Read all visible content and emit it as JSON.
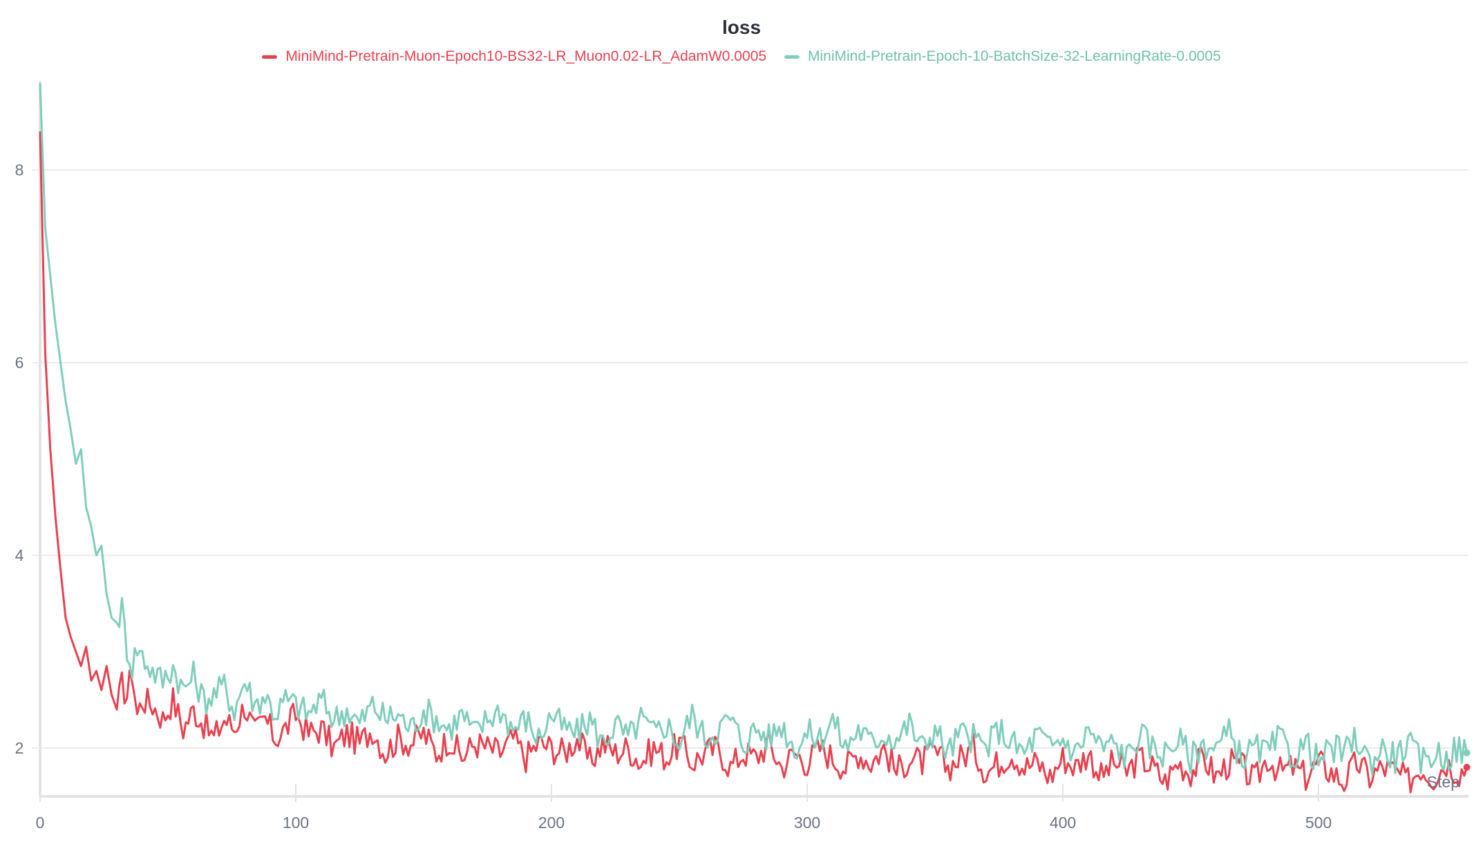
{
  "chart_data": {
    "type": "line",
    "title": "loss",
    "xlabel": "Step",
    "ylabel": "",
    "xlim": [
      0,
      558
    ],
    "ylim": [
      1.5,
      8.9
    ],
    "x_ticks": [
      0,
      100,
      200,
      300,
      400,
      500
    ],
    "y_ticks": [
      2,
      4,
      6,
      8
    ],
    "grid": true,
    "legend_position": "top-center",
    "series": [
      {
        "name": "MiniMind-Pretrain-Muon-Epoch10-BS32-LR_Muon0.02-LR_AdamW0.0005",
        "color": "#e8404f",
        "x": [
          0,
          2,
          4,
          6,
          8,
          10,
          12,
          14,
          16,
          18,
          20,
          22,
          24,
          26,
          28,
          30,
          32,
          34,
          36,
          38,
          40,
          44,
          48,
          52,
          56,
          60,
          64,
          68,
          72,
          76,
          80,
          84,
          88,
          92,
          96,
          100,
          105,
          110,
          115,
          120,
          125,
          130,
          135,
          140,
          145,
          150,
          155,
          160,
          165,
          170,
          175,
          180,
          185,
          190,
          195,
          200,
          205,
          210,
          215,
          220,
          225,
          230,
          235,
          240,
          245,
          250,
          255,
          260,
          265,
          270,
          275,
          280,
          285,
          290,
          295,
          300,
          305,
          310,
          315,
          320,
          325,
          330,
          335,
          340,
          345,
          350,
          355,
          360,
          365,
          370,
          375,
          380,
          385,
          390,
          395,
          400,
          405,
          410,
          415,
          420,
          425,
          430,
          435,
          440,
          445,
          450,
          455,
          460,
          465,
          470,
          475,
          480,
          485,
          490,
          495,
          500,
          505,
          510,
          515,
          520,
          525,
          530,
          535,
          540,
          545,
          550,
          555,
          558
        ],
        "values": [
          8.4,
          6.1,
          5.1,
          4.4,
          3.85,
          3.35,
          3.15,
          3.0,
          2.85,
          3.05,
          2.7,
          2.8,
          2.6,
          2.85,
          2.55,
          2.4,
          2.65,
          2.55,
          2.8,
          2.35,
          2.5,
          2.45,
          2.3,
          2.5,
          2.2,
          2.4,
          2.25,
          2.1,
          2.3,
          2.2,
          2.45,
          2.15,
          2.3,
          2.1,
          2.2,
          2.35,
          2.15,
          2.2,
          2.0,
          2.15,
          2.05,
          2.2,
          1.95,
          2.1,
          2.05,
          2.15,
          1.95,
          2.1,
          1.9,
          2.05,
          2.0,
          1.95,
          2.1,
          1.9,
          2.05,
          2.0,
          1.95,
          2.1,
          1.85,
          2.05,
          1.95,
          2.0,
          1.85,
          2.0,
          1.9,
          2.05,
          1.85,
          1.95,
          2.0,
          1.8,
          1.95,
          1.9,
          2.05,
          1.8,
          1.95,
          1.85,
          2.0,
          1.9,
          1.8,
          1.95,
          1.85,
          2.0,
          1.75,
          1.9,
          1.85,
          1.95,
          1.8,
          1.9,
          2.0,
          1.75,
          1.85,
          1.95,
          1.8,
          1.85,
          1.7,
          1.9,
          1.8,
          1.95,
          1.7,
          1.85,
          1.75,
          1.9,
          1.8,
          1.65,
          1.85,
          1.75,
          1.9,
          1.7,
          1.85,
          1.8,
          1.65,
          1.9,
          1.75,
          1.8,
          1.7,
          1.85,
          1.75,
          1.65,
          1.85,
          1.7,
          1.8,
          1.75,
          1.65,
          1.8,
          1.7,
          1.85,
          1.75,
          1.8
        ]
      },
      {
        "name": "MiniMind-Pretrain-Epoch-10-BatchSize-32-LearningRate-0.0005",
        "color": "#7fcdbb",
        "x": [
          0,
          2,
          4,
          6,
          8,
          10,
          12,
          14,
          16,
          18,
          20,
          22,
          24,
          26,
          28,
          30,
          32,
          34,
          36,
          38,
          40,
          44,
          48,
          52,
          56,
          60,
          64,
          68,
          72,
          76,
          80,
          84,
          88,
          92,
          96,
          100,
          105,
          110,
          115,
          120,
          125,
          130,
          135,
          140,
          145,
          150,
          155,
          160,
          165,
          170,
          175,
          180,
          185,
          190,
          195,
          200,
          205,
          210,
          215,
          220,
          225,
          230,
          235,
          240,
          245,
          250,
          255,
          260,
          265,
          270,
          275,
          280,
          285,
          290,
          295,
          300,
          305,
          310,
          315,
          320,
          325,
          330,
          335,
          340,
          345,
          350,
          355,
          360,
          365,
          370,
          375,
          380,
          385,
          390,
          395,
          400,
          405,
          410,
          415,
          420,
          425,
          430,
          435,
          440,
          445,
          450,
          455,
          460,
          465,
          470,
          475,
          480,
          485,
          490,
          495,
          500,
          505,
          510,
          515,
          520,
          525,
          530,
          535,
          540,
          545,
          550,
          555,
          558
        ],
        "values": [
          8.9,
          7.4,
          6.9,
          6.4,
          6.0,
          5.6,
          5.3,
          4.95,
          5.1,
          4.5,
          4.3,
          4.0,
          4.1,
          3.6,
          3.35,
          3.3,
          3.45,
          3.05,
          2.85,
          3.05,
          2.95,
          2.8,
          2.7,
          2.85,
          2.6,
          2.75,
          2.5,
          2.55,
          2.65,
          2.4,
          2.7,
          2.45,
          2.55,
          2.35,
          2.5,
          2.45,
          2.35,
          2.5,
          2.3,
          2.4,
          2.25,
          2.45,
          2.3,
          2.35,
          2.2,
          2.4,
          2.3,
          2.2,
          2.35,
          2.15,
          2.3,
          2.4,
          2.2,
          2.3,
          2.1,
          2.35,
          2.2,
          2.15,
          2.3,
          2.05,
          2.25,
          2.1,
          2.3,
          2.15,
          2.25,
          2.05,
          2.35,
          2.1,
          2.2,
          2.3,
          2.05,
          2.2,
          2.1,
          2.25,
          2.0,
          2.15,
          2.1,
          2.3,
          2.0,
          2.2,
          2.05,
          2.15,
          2.1,
          2.25,
          2.0,
          2.2,
          1.95,
          2.15,
          2.1,
          2.0,
          2.2,
          2.05,
          1.95,
          2.15,
          2.0,
          2.1,
          1.95,
          2.2,
          2.0,
          2.05,
          1.9,
          2.15,
          2.0,
          1.95,
          2.1,
          1.9,
          2.05,
          2.0,
          2.15,
          1.9,
          2.0,
          1.95,
          2.1,
          1.9,
          2.05,
          1.85,
          2.0,
          1.95,
          2.1,
          1.85,
          2.0,
          1.9,
          2.05,
          1.85,
          1.95,
          1.9,
          2.0,
          1.95
        ]
      }
    ]
  },
  "chart": {
    "title": "loss",
    "x_axis_label": "Step",
    "legend": [
      {
        "label": "MiniMind-Pretrain-Muon-Epoch10-BS32-LR_Muon0.02-LR_AdamW0.0005",
        "color": "#e8404f"
      },
      {
        "label": "MiniMind-Pretrain-Epoch-10-BatchSize-32-LearningRate-0.0005",
        "color": "#7fcdbb"
      }
    ]
  }
}
